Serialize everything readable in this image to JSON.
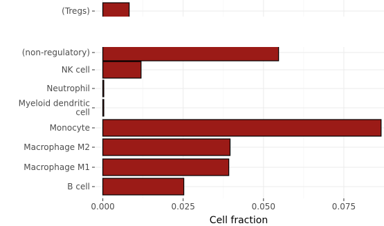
{
  "chart_data": {
    "type": "bar",
    "orientation": "horizontal",
    "xlabel": "Cell fraction",
    "ylabel": "",
    "xlim": [
      -0.0025,
      0.0875
    ],
    "x_ticks": [
      0.0,
      0.025,
      0.05,
      0.075
    ],
    "x_tick_labels": [
      "0.000",
      "0.025",
      "0.050",
      "0.075"
    ],
    "grid": true,
    "bar_color": "#9b1b17",
    "categories": [
      {
        "label": [
          "(Tregs)"
        ],
        "value": 0.0082
      },
      {
        "label": [
          "(non-regulatory)"
        ],
        "value": 0.0547
      },
      {
        "label": [
          "NK cell"
        ],
        "value": 0.0119
      },
      {
        "label": [
          "Neutrophil"
        ],
        "value": 0.0003
      },
      {
        "label": [
          "Myeloid dendritic",
          "cell"
        ],
        "value": 0.0003
      },
      {
        "label": [
          "Monocyte"
        ],
        "value": 0.0866
      },
      {
        "label": [
          "Macrophage M2"
        ],
        "value": 0.0396
      },
      {
        "label": [
          "Macrophage M1"
        ],
        "value": 0.0392
      },
      {
        "label": [
          "B cell"
        ],
        "value": 0.0252
      }
    ]
  }
}
